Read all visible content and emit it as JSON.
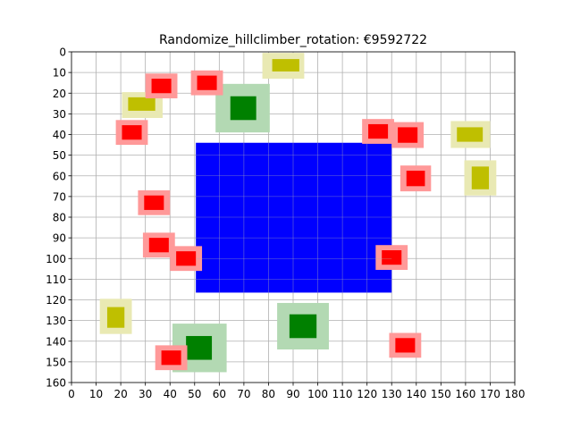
{
  "chart_data": {
    "type": "scatter",
    "title": "Randomize_hillclimber_rotation: €9592722",
    "xlabel": "",
    "ylabel": "",
    "xlim": [
      0,
      180
    ],
    "ylim": [
      160,
      0
    ],
    "y_inverted": true,
    "grid": true,
    "x_ticks": [
      "0",
      "10",
      "20",
      "30",
      "40",
      "50",
      "60",
      "70",
      "80",
      "90",
      "100",
      "110",
      "120",
      "130",
      "140",
      "150",
      "160",
      "170",
      "180"
    ],
    "y_ticks": [
      "0",
      "10",
      "20",
      "30",
      "40",
      "50",
      "60",
      "70",
      "80",
      "90",
      "100",
      "110",
      "120",
      "130",
      "140",
      "150",
      "160"
    ],
    "colors": {
      "blue": "#0000ff",
      "red": "#ff0000",
      "red_halo": "#ff9999",
      "yellow": "#bfbf00",
      "yellow_halo": "#e9e9b3",
      "green": "#008000",
      "green_halo": "#b3d9b3",
      "grid": "#b0b0b0"
    },
    "rects": [
      {
        "kind": "blue",
        "x0": 50.5,
        "x1": 130,
        "y0": 44,
        "y1": 116.5
      },
      {
        "kind": "green",
        "x0": 64.5,
        "x1": 75,
        "y0": 21.5,
        "y1": 33,
        "hx0": 58.5,
        "hx1": 80.5,
        "hy0": 15.5,
        "hy1": 39
      },
      {
        "kind": "green",
        "x0": 88.5,
        "x1": 99.5,
        "y0": 127,
        "y1": 138.5,
        "hx0": 83.5,
        "hx1": 104.5,
        "hy0": 121.5,
        "hy1": 144
      },
      {
        "kind": "green",
        "x0": 46.5,
        "x1": 57,
        "y0": 137.5,
        "y1": 149,
        "hx0": 41,
        "hx1": 63,
        "hy0": 131.5,
        "hy1": 155
      },
      {
        "kind": "yellow",
        "x0": 81.5,
        "x1": 92.5,
        "y0": 3.5,
        "y1": 9.5,
        "hx0": 77.5,
        "hx1": 94.5,
        "hy0": 0.5,
        "hy1": 13
      },
      {
        "kind": "yellow",
        "x0": 23,
        "x1": 34,
        "y0": 22,
        "y1": 28.5,
        "hx0": 20.5,
        "hx1": 37,
        "hy0": 19.5,
        "hy1": 32
      },
      {
        "kind": "yellow",
        "x0": 156.5,
        "x1": 167,
        "y0": 36.5,
        "y1": 43.5,
        "hx0": 154,
        "hx1": 170,
        "hy0": 33.5,
        "hy1": 46.5
      },
      {
        "kind": "yellow",
        "x0": 162.5,
        "x1": 169.5,
        "y0": 55.5,
        "y1": 66.5,
        "hx0": 159.5,
        "hx1": 172.5,
        "hy0": 52.5,
        "hy1": 69.5
      },
      {
        "kind": "yellow",
        "x0": 14.5,
        "x1": 21.5,
        "y0": 123.5,
        "y1": 133.5,
        "hx0": 11.5,
        "hx1": 24.5,
        "hy0": 119.5,
        "hy1": 136.5
      },
      {
        "kind": "red",
        "x0": 32.5,
        "x1": 40.5,
        "y0": 13,
        "y1": 20,
        "hx0": 30,
        "hx1": 43,
        "hy0": 10.5,
        "hy1": 22.5
      },
      {
        "kind": "red",
        "x0": 51,
        "x1": 59,
        "y0": 11.5,
        "y1": 18.5,
        "hx0": 48.5,
        "hx1": 61.5,
        "hy0": 9,
        "hy1": 21
      },
      {
        "kind": "red",
        "x0": 20.5,
        "x1": 28.5,
        "y0": 35.5,
        "y1": 42.5,
        "hx0": 18,
        "hx1": 31,
        "hy0": 33,
        "hy1": 45
      },
      {
        "kind": "red",
        "x0": 120.5,
        "x1": 128.5,
        "y0": 35,
        "y1": 42,
        "hx0": 118,
        "hx1": 131,
        "hy0": 32.5,
        "hy1": 44.5
      },
      {
        "kind": "red",
        "x0": 132.5,
        "x1": 140.5,
        "y0": 36.5,
        "y1": 44,
        "hx0": 130,
        "hx1": 143,
        "hy0": 34,
        "hy1": 46.5
      },
      {
        "kind": "red",
        "x0": 136,
        "x1": 143.5,
        "y0": 57.5,
        "y1": 65,
        "hx0": 133.5,
        "hx1": 146,
        "hy0": 55,
        "hy1": 67.5
      },
      {
        "kind": "red",
        "x0": 29.5,
        "x1": 37.5,
        "y0": 69.5,
        "y1": 76.5,
        "hx0": 27,
        "hx1": 40,
        "hy0": 67,
        "hy1": 79
      },
      {
        "kind": "red",
        "x0": 31.5,
        "x1": 39.5,
        "y0": 90,
        "y1": 97,
        "hx0": 29,
        "hx1": 42,
        "hy0": 87.5,
        "hy1": 99.5
      },
      {
        "kind": "red",
        "x0": 42.5,
        "x1": 50.5,
        "y0": 96.5,
        "y1": 103.5,
        "hx0": 40,
        "hx1": 53,
        "hy0": 94,
        "hy1": 106
      },
      {
        "kind": "red",
        "x0": 126,
        "x1": 134,
        "y0": 96,
        "y1": 103,
        "hx0": 123.5,
        "hx1": 136.5,
        "hy0": 93.5,
        "hy1": 105.5
      },
      {
        "kind": "red",
        "x0": 131.5,
        "x1": 139.5,
        "y0": 138.5,
        "y1": 145.5,
        "hx0": 129,
        "hx1": 142,
        "hy0": 136,
        "hy1": 148
      },
      {
        "kind": "red",
        "x0": 36.5,
        "x1": 44.5,
        "y0": 144.5,
        "y1": 151.5,
        "hx0": 34,
        "hx1": 47,
        "hy0": 142,
        "hy1": 154
      }
    ]
  }
}
